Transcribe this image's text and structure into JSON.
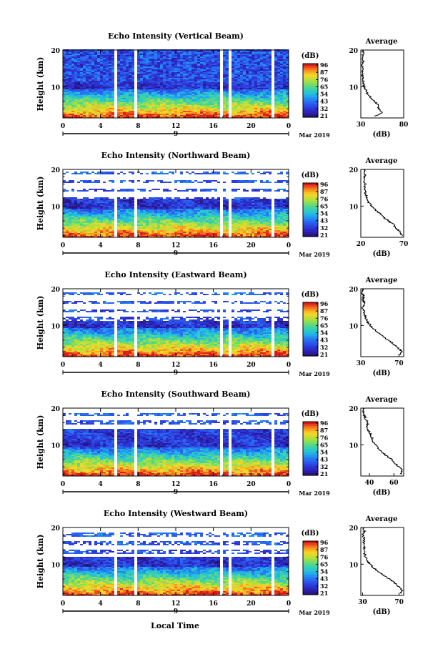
{
  "figure": {
    "xlabel_bottom": "Local Time",
    "date_label": "Mar 2019",
    "day_label": "9",
    "colorbar_unit": "(dB)",
    "colorbar_ticks": [
      "96",
      "87",
      "76",
      "65",
      "54",
      "43",
      "32",
      "21"
    ],
    "profile_title": "Average",
    "profile_xlabel": "(dB)"
  },
  "chart_data": [
    {
      "type": "heatmap",
      "title": "Echo Intensity (Vertical Beam)",
      "ylabel": "Height (km)",
      "x_ticks": [
        "0",
        "4",
        "8",
        "12",
        "16",
        "20",
        "0"
      ],
      "y_ticks": [
        "20",
        "10"
      ],
      "xlim": [
        0,
        24
      ],
      "ylim": [
        1.5,
        20
      ],
      "gaps_hours": [
        [
          4.6,
          4.85
        ],
        [
          5.4,
          5.6
        ],
        [
          6.1,
          6.3
        ],
        [
          7.5,
          7.65
        ],
        [
          15.8,
          16.1
        ],
        [
          16.7,
          16.9
        ],
        [
          17.5,
          17.8
        ],
        [
          22.1,
          22.35
        ]
      ],
      "dense_top_km": 20,
      "profile": {
        "x_ticks": [
          "30",
          "80"
        ],
        "xlim": [
          30,
          80
        ],
        "y_ticks": [
          "20",
          "10"
        ],
        "points": [
          [
            47,
            2
          ],
          [
            55,
            3
          ],
          [
            51,
            4
          ],
          [
            50,
            5
          ],
          [
            46,
            6
          ],
          [
            42,
            7
          ],
          [
            38,
            8
          ],
          [
            36,
            9
          ],
          [
            34,
            10
          ],
          [
            33,
            11
          ],
          [
            33,
            12
          ],
          [
            32,
            13
          ],
          [
            31,
            14
          ],
          [
            33,
            15
          ],
          [
            31,
            16
          ],
          [
            33,
            17
          ],
          [
            31,
            18
          ],
          [
            33,
            19
          ],
          [
            32,
            20
          ]
        ]
      }
    },
    {
      "type": "heatmap",
      "title": "Echo Intensity (Northward Beam)",
      "ylabel": "Height (km)",
      "x_ticks": [
        "0",
        "4",
        "8",
        "12",
        "16",
        "20",
        "0"
      ],
      "y_ticks": [
        "20",
        "10"
      ],
      "xlim": [
        0,
        24
      ],
      "ylim": [
        1.5,
        20
      ],
      "gaps_hours": [
        [
          4.6,
          4.85
        ],
        [
          5.4,
          5.6
        ],
        [
          6.1,
          6.3
        ],
        [
          7.5,
          7.65
        ],
        [
          15.8,
          16.1
        ],
        [
          16.7,
          16.9
        ],
        [
          17.5,
          17.8
        ],
        [
          22.1,
          22.35
        ]
      ],
      "dense_top_km": 12,
      "profile": {
        "x_ticks": [
          "20",
          "70"
        ],
        "xlim": [
          20,
          70
        ],
        "y_ticks": [
          "20",
          "10"
        ],
        "points": [
          [
            68,
            2
          ],
          [
            66,
            3
          ],
          [
            61,
            4
          ],
          [
            58,
            5
          ],
          [
            52,
            6
          ],
          [
            46,
            7
          ],
          [
            42,
            8
          ],
          [
            37,
            9
          ],
          [
            33,
            10
          ],
          [
            29,
            11
          ],
          [
            27,
            12
          ],
          [
            26,
            13
          ],
          [
            25,
            14
          ],
          [
            24,
            15
          ],
          [
            25,
            16
          ],
          [
            24,
            17
          ],
          [
            25,
            18
          ],
          [
            24,
            19
          ],
          [
            25,
            20
          ]
        ]
      }
    },
    {
      "type": "heatmap",
      "title": "Echo Intensity (Eastward Beam)",
      "ylabel": "Height (km)",
      "x_ticks": [
        "0",
        "4",
        "8",
        "12",
        "16",
        "20",
        "0"
      ],
      "y_ticks": [
        "20",
        "10"
      ],
      "xlim": [
        0,
        24
      ],
      "ylim": [
        1.5,
        20
      ],
      "gaps_hours": [
        [
          4.6,
          4.85
        ],
        [
          5.4,
          5.6
        ],
        [
          6.1,
          6.3
        ],
        [
          7.5,
          7.65
        ],
        [
          15.8,
          16.1
        ],
        [
          16.7,
          16.9
        ],
        [
          17.5,
          17.8
        ],
        [
          22.1,
          22.35
        ]
      ],
      "dense_top_km": 11,
      "profile": {
        "x_ticks": [
          "30",
          "70"
        ],
        "xlim": [
          30,
          75
        ],
        "y_ticks": [
          "20",
          "10"
        ],
        "points": [
          [
            71,
            2
          ],
          [
            73,
            3
          ],
          [
            68,
            4
          ],
          [
            64,
            5
          ],
          [
            59,
            6
          ],
          [
            53,
            7
          ],
          [
            48,
            8
          ],
          [
            44,
            9
          ],
          [
            40,
            10
          ],
          [
            37,
            11
          ],
          [
            35,
            12
          ],
          [
            34,
            13
          ],
          [
            33,
            14
          ],
          [
            32,
            15
          ],
          [
            34,
            16
          ],
          [
            32,
            17
          ],
          [
            33,
            18
          ],
          [
            31,
            19
          ],
          [
            33,
            20
          ]
        ]
      }
    },
    {
      "type": "heatmap",
      "title": "Echo Intensity (Southward Beam)",
      "ylabel": "Height (km)",
      "x_ticks": [
        "0",
        "4",
        "8",
        "12",
        "16",
        "20",
        "0"
      ],
      "y_ticks": [
        "20",
        "10"
      ],
      "xlim": [
        0,
        24
      ],
      "ylim": [
        1.5,
        20
      ],
      "gaps_hours": [
        [
          4.6,
          4.85
        ],
        [
          5.4,
          5.6
        ],
        [
          6.1,
          6.3
        ],
        [
          7.5,
          7.65
        ],
        [
          15.8,
          16.1
        ],
        [
          16.7,
          16.9
        ],
        [
          17.5,
          17.8
        ],
        [
          22.1,
          22.35
        ]
      ],
      "dense_top_km": 14,
      "profile": {
        "x_ticks": [
          "40",
          "60"
        ],
        "xlim": [
          33,
          68
        ],
        "y_ticks": [
          "20",
          "10"
        ],
        "points": [
          [
            66,
            2
          ],
          [
            67,
            3
          ],
          [
            64,
            4
          ],
          [
            61,
            5
          ],
          [
            58,
            6
          ],
          [
            54,
            7
          ],
          [
            50,
            8
          ],
          [
            47,
            9
          ],
          [
            45,
            10
          ],
          [
            43,
            11
          ],
          [
            42,
            12
          ],
          [
            41,
            13
          ],
          [
            39,
            14
          ],
          [
            38,
            15
          ],
          [
            39,
            16
          ],
          [
            37,
            17
          ],
          [
            36,
            18
          ],
          [
            35,
            19
          ],
          [
            36,
            20
          ]
        ]
      }
    },
    {
      "type": "heatmap",
      "title": "Echo Intensity (Westward Beam)",
      "ylabel": "Height (km)",
      "x_ticks": [
        "0",
        "4",
        "8",
        "12",
        "16",
        "20",
        "0"
      ],
      "y_ticks": [
        "20",
        "10"
      ],
      "xlim": [
        0,
        24
      ],
      "ylim": [
        1.5,
        20
      ],
      "gaps_hours": [
        [
          4.6,
          4.85
        ],
        [
          5.4,
          5.6
        ],
        [
          6.1,
          6.3
        ],
        [
          7.5,
          7.65
        ],
        [
          15.8,
          16.1
        ],
        [
          16.7,
          16.9
        ],
        [
          17.5,
          17.8
        ],
        [
          22.1,
          22.35
        ]
      ],
      "dense_top_km": 12,
      "profile": {
        "x_ticks": [
          "30",
          "70"
        ],
        "xlim": [
          28,
          75
        ],
        "y_ticks": [
          "20",
          "10"
        ],
        "points": [
          [
            72,
            2
          ],
          [
            73,
            3
          ],
          [
            69,
            4
          ],
          [
            65,
            5
          ],
          [
            59,
            6
          ],
          [
            53,
            7
          ],
          [
            47,
            8
          ],
          [
            42,
            9
          ],
          [
            38,
            10
          ],
          [
            35,
            11
          ],
          [
            33,
            12
          ],
          [
            32,
            13
          ],
          [
            31,
            14
          ],
          [
            32,
            15
          ],
          [
            31,
            16
          ],
          [
            32,
            17
          ],
          [
            30,
            18
          ],
          [
            32,
            19
          ],
          [
            31,
            20
          ]
        ]
      }
    }
  ]
}
